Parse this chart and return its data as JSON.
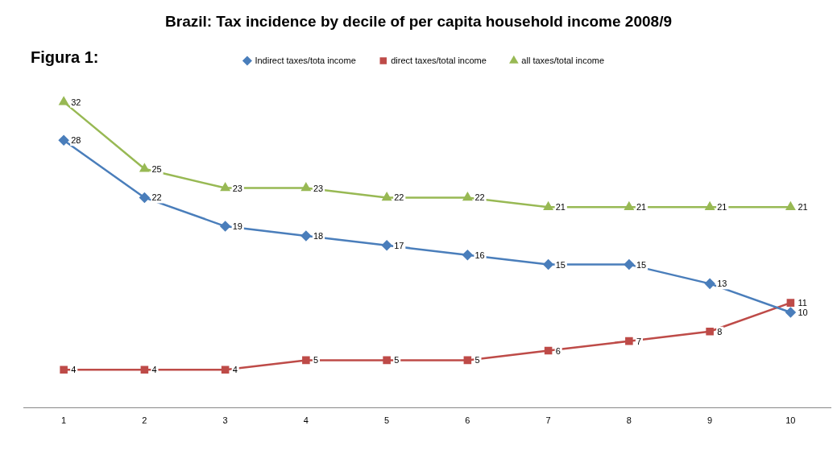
{
  "chart_data": {
    "type": "line",
    "title": "Brazil: Tax incidence by decile of per capita household income 2008/9",
    "annotations": [
      "Figura 1:"
    ],
    "categories": [
      "1",
      "2",
      "3",
      "4",
      "5",
      "6",
      "7",
      "8",
      "9",
      "10"
    ],
    "series": [
      {
        "name": "Indirect taxes/tota income",
        "color": "#4a7ebb",
        "marker": "diamond",
        "values": [
          28,
          22,
          19,
          18,
          17,
          16,
          15,
          15,
          13,
          10
        ]
      },
      {
        "name": "direct taxes/total income",
        "color": "#be4b48",
        "marker": "square",
        "values": [
          4,
          4,
          4,
          5,
          5,
          5,
          6,
          7,
          8,
          11
        ]
      },
      {
        "name": "all taxes/total income",
        "color": "#98b954",
        "marker": "triangle",
        "values": [
          32,
          25,
          23,
          23,
          22,
          22,
          21,
          21,
          21,
          21
        ]
      }
    ],
    "tick_labels": "x",
    "grid": false,
    "legend": "top",
    "data_labels": true,
    "line_style": "solid"
  }
}
